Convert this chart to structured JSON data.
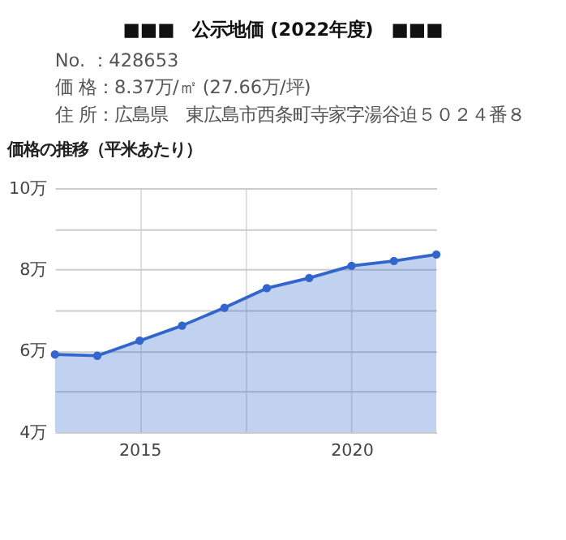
{
  "chart_data": {
    "type": "area",
    "title": "■■■　公示地価 (2022年度)　■■■",
    "annotations": [
      "No. ：428653",
      "価 格：8.37万/㎡ (27.66万/坪)",
      "住 所：広島県　東広島市西条町寺家字湯谷迫５０２４番８"
    ],
    "subtitle": "価格の推移（平米あたり）",
    "x": [
      2013,
      2014,
      2015,
      2016,
      2017,
      2018,
      2019,
      2020,
      2021,
      2022
    ],
    "values": [
      5.91,
      5.88,
      6.25,
      6.62,
      7.06,
      7.54,
      7.79,
      8.09,
      8.21,
      8.37
    ],
    "color": "#3366cc",
    "xlim": [
      2013,
      2022
    ],
    "xticks": [
      2015,
      {
        "value": 2017.5,
        "label": null
      },
      2020
    ],
    "ylim": [
      4,
      10
    ],
    "yticks": [
      {
        "value": 4,
        "label": "4万"
      },
      {
        "value": 5,
        "label": null
      },
      {
        "value": 6,
        "label": "6万"
      },
      {
        "value": 7,
        "label": null
      },
      {
        "value": 8,
        "label": "8万"
      },
      {
        "value": 9,
        "label": null
      },
      {
        "value": 10,
        "label": "10万"
      }
    ],
    "grid": true,
    "marker": "circle"
  }
}
